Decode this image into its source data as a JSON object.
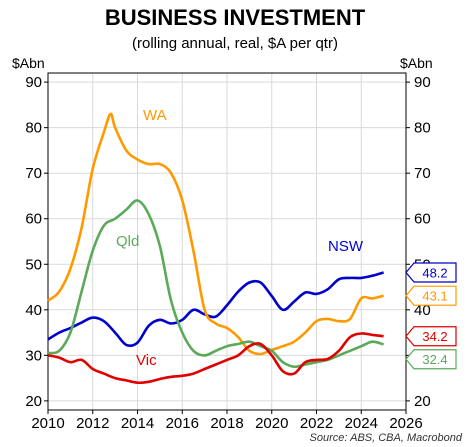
{
  "chart_data": {
    "type": "line",
    "title": "BUSINESS INVESTMENT",
    "subtitle": "(rolling annual, real, $A per qtr)",
    "ylabel_left": "$Abn",
    "ylabel_right": "$Abn",
    "source": "Source: ABS, CBA, Macrobond",
    "xlim": [
      2010,
      2026
    ],
    "ylim": [
      18,
      92
    ],
    "x_ticks": [
      "2010",
      "2012",
      "2014",
      "2016",
      "2018",
      "2020",
      "2022",
      "2024",
      "2026"
    ],
    "y_ticks": [
      "20",
      "30",
      "40",
      "50",
      "60",
      "70",
      "80",
      "90"
    ],
    "grid": true,
    "series": [
      {
        "name": "NSW",
        "color": "#0000cc",
        "end_value": "48.2",
        "x": [
          2010,
          2010.5,
          2011,
          2011.5,
          2012,
          2012.5,
          2013,
          2013.5,
          2014,
          2014.5,
          2015,
          2015.5,
          2016,
          2016.5,
          2017,
          2017.5,
          2018,
          2018.5,
          2019,
          2019.5,
          2020,
          2020.5,
          2021,
          2021.5,
          2022,
          2022.5,
          2023,
          2023.5,
          2024,
          2024.5,
          2025
        ],
        "y": [
          33.5,
          35,
          36,
          37.2,
          38.3,
          37.5,
          35,
          32.3,
          32.8,
          36.5,
          37.8,
          37,
          37.8,
          40,
          39,
          38.5,
          41,
          44,
          46,
          46,
          43,
          40,
          41.8,
          43.8,
          43.5,
          44.5,
          46.7,
          47,
          47,
          47.5,
          48.2
        ]
      },
      {
        "name": "WA",
        "color": "#ff9900",
        "end_value": "43.1",
        "x": [
          2010,
          2010.5,
          2011,
          2011.5,
          2012,
          2012.5,
          2012.8,
          2013,
          2013.5,
          2014,
          2014.5,
          2015,
          2015.5,
          2016,
          2016.5,
          2017,
          2017.5,
          2018,
          2018.5,
          2019,
          2019.5,
          2020,
          2020.5,
          2021,
          2021.5,
          2022,
          2022.5,
          2023,
          2023.5,
          2024,
          2024.5,
          2025
        ],
        "y": [
          42,
          44,
          49,
          58,
          71,
          79,
          83,
          80,
          75,
          73,
          72,
          72,
          70,
          64,
          53,
          40,
          37,
          36,
          34,
          31,
          30.3,
          31.2,
          32,
          33,
          35,
          37.5,
          38,
          37.5,
          38,
          42.5,
          42.5,
          43.1
        ]
      },
      {
        "name": "Qld",
        "color": "#5aaa5a",
        "end_value": "32.4",
        "x": [
          2010,
          2010.5,
          2011,
          2011.5,
          2012,
          2012.5,
          2013,
          2013.5,
          2014,
          2014.5,
          2015,
          2015.5,
          2016,
          2016.5,
          2017,
          2017.5,
          2018,
          2018.5,
          2019,
          2019.5,
          2020,
          2020.5,
          2021,
          2021.5,
          2022,
          2022.5,
          2023,
          2023.5,
          2024,
          2024.5,
          2025
        ],
        "y": [
          30.5,
          31,
          35,
          44,
          53,
          58.5,
          60,
          62,
          64,
          61,
          54,
          42,
          35,
          31,
          30,
          31,
          32,
          32.5,
          33,
          32,
          31,
          28.5,
          27.5,
          28,
          28.5,
          29,
          30,
          31,
          32,
          33,
          32.4
        ]
      },
      {
        "name": "Vic",
        "color": "#e00000",
        "end_value": "34.2",
        "x": [
          2010,
          2010.5,
          2011,
          2011.5,
          2012,
          2012.5,
          2013,
          2013.5,
          2014,
          2014.5,
          2015,
          2015.5,
          2016,
          2016.5,
          2017,
          2017.5,
          2018,
          2018.5,
          2019,
          2019.5,
          2020,
          2020.5,
          2021,
          2021.5,
          2022,
          2022.5,
          2023,
          2023.5,
          2024,
          2024.5,
          2025
        ],
        "y": [
          30,
          29.5,
          28.5,
          29,
          27,
          26,
          25,
          24.5,
          24,
          24.2,
          24.8,
          25.3,
          25.5,
          26,
          27,
          28,
          29,
          30,
          32,
          32.5,
          30,
          26.5,
          26,
          28.5,
          29,
          29.2,
          31,
          34,
          34.8,
          34.5,
          34.2
        ]
      }
    ]
  }
}
